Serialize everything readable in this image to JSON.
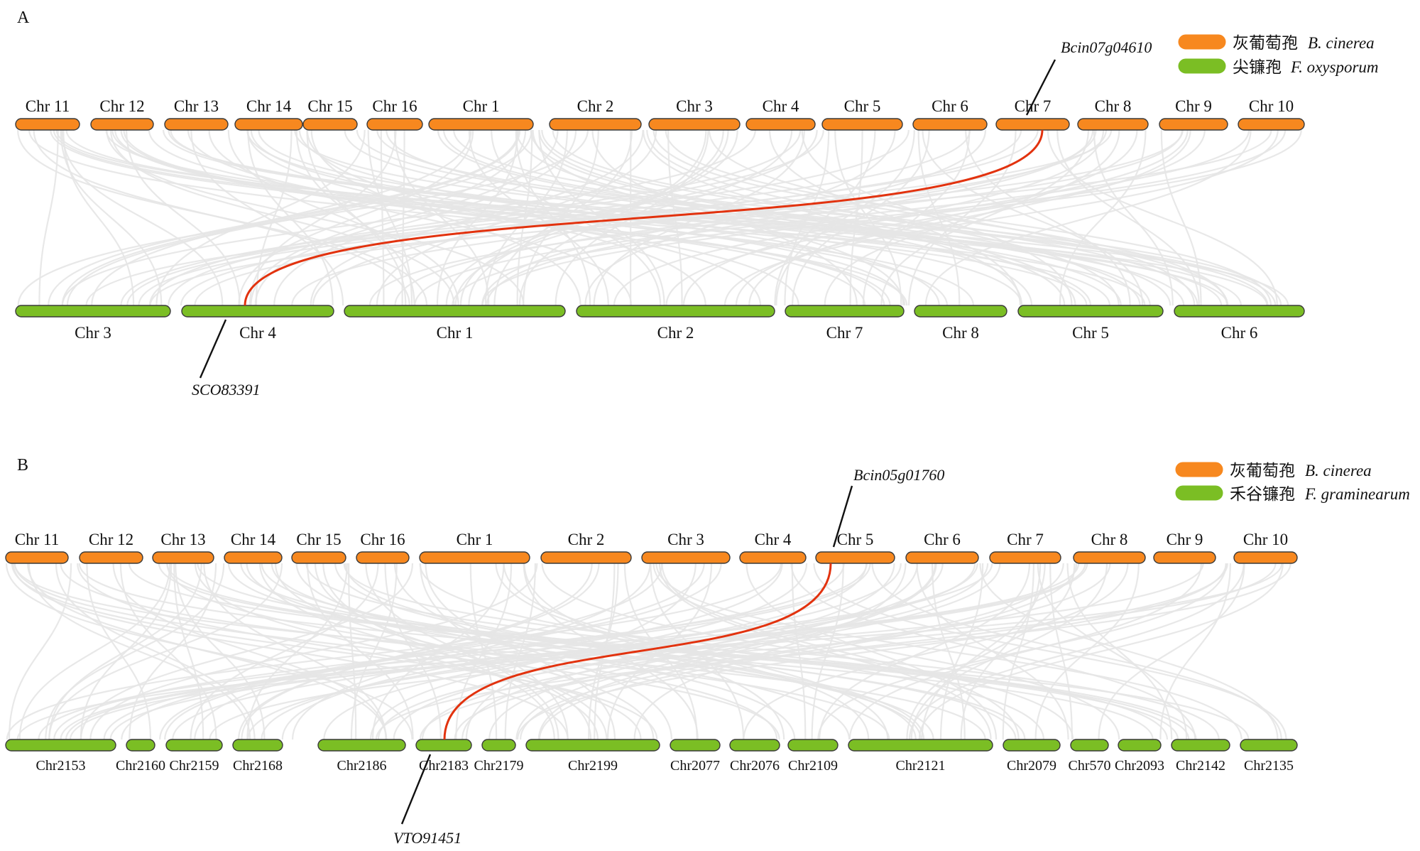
{
  "colors": {
    "species1": "#F7881F",
    "species2": "#7BBE24",
    "highlight": "#E2320E",
    "background_links": "#E6E6E6",
    "outline": "#3a3a3a"
  },
  "panels": [
    {
      "id": "A",
      "label": "A",
      "legend": [
        {
          "cn": "灰葡萄孢",
          "species": "B. cinerea",
          "color": "#F7881F"
        },
        {
          "cn": "尖镰孢",
          "species": "F. oxysporum",
          "color": "#7BBE24"
        }
      ],
      "top_chromosomes": [
        "Chr 11",
        "Chr 12",
        "Chr 13",
        "Chr 14",
        "Chr 15",
        "Chr 16",
        "Chr 1",
        "Chr 2",
        "Chr 3",
        "Chr 4",
        "Chr 5",
        "Chr 6",
        "Chr 7",
        "Chr 8",
        "Chr 9",
        "Chr 10"
      ],
      "bottom_chromosomes": [
        "Chr 3",
        "Chr 4",
        "Chr 1",
        "Chr 2",
        "Chr 7",
        "Chr 8",
        "Chr 5",
        "Chr 6"
      ],
      "highlight": {
        "top_gene": "Bcin07g04610",
        "top_chr": "Chr 7",
        "bottom_gene": "SCO83391",
        "bottom_chr": "Chr 4"
      }
    },
    {
      "id": "B",
      "label": "B",
      "legend": [
        {
          "cn": "灰葡萄孢",
          "species": "B. cinerea",
          "color": "#F7881F"
        },
        {
          "cn": "禾谷镰孢",
          "species": "F. graminearum",
          "color": "#7BBE24"
        }
      ],
      "top_chromosomes": [
        "Chr 11",
        "Chr 12",
        "Chr 13",
        "Chr 14",
        "Chr 15",
        "Chr 16",
        "Chr 1",
        "Chr 2",
        "Chr 3",
        "Chr 4",
        "Chr 5",
        "Chr 6",
        "Chr 7",
        "Chr 8",
        "Chr 9",
        "Chr 10"
      ],
      "bottom_chromosomes": [
        "Chr2153",
        "Chr2160",
        "Chr2159",
        "Chr2168",
        "Chr2186",
        "Chr2183",
        "Chr2179",
        "Chr2199",
        "Chr2077",
        "Chr2076",
        "Chr2109",
        "Chr2121",
        "Chr2079",
        "Chr570",
        "Chr2093",
        "Chr2142",
        "Chr2135"
      ],
      "highlight": {
        "top_gene": "Bcin05g01760",
        "top_chr": "Chr 5",
        "bottom_gene": "VTO91451",
        "bottom_chr": "Chr2183"
      }
    }
  ]
}
